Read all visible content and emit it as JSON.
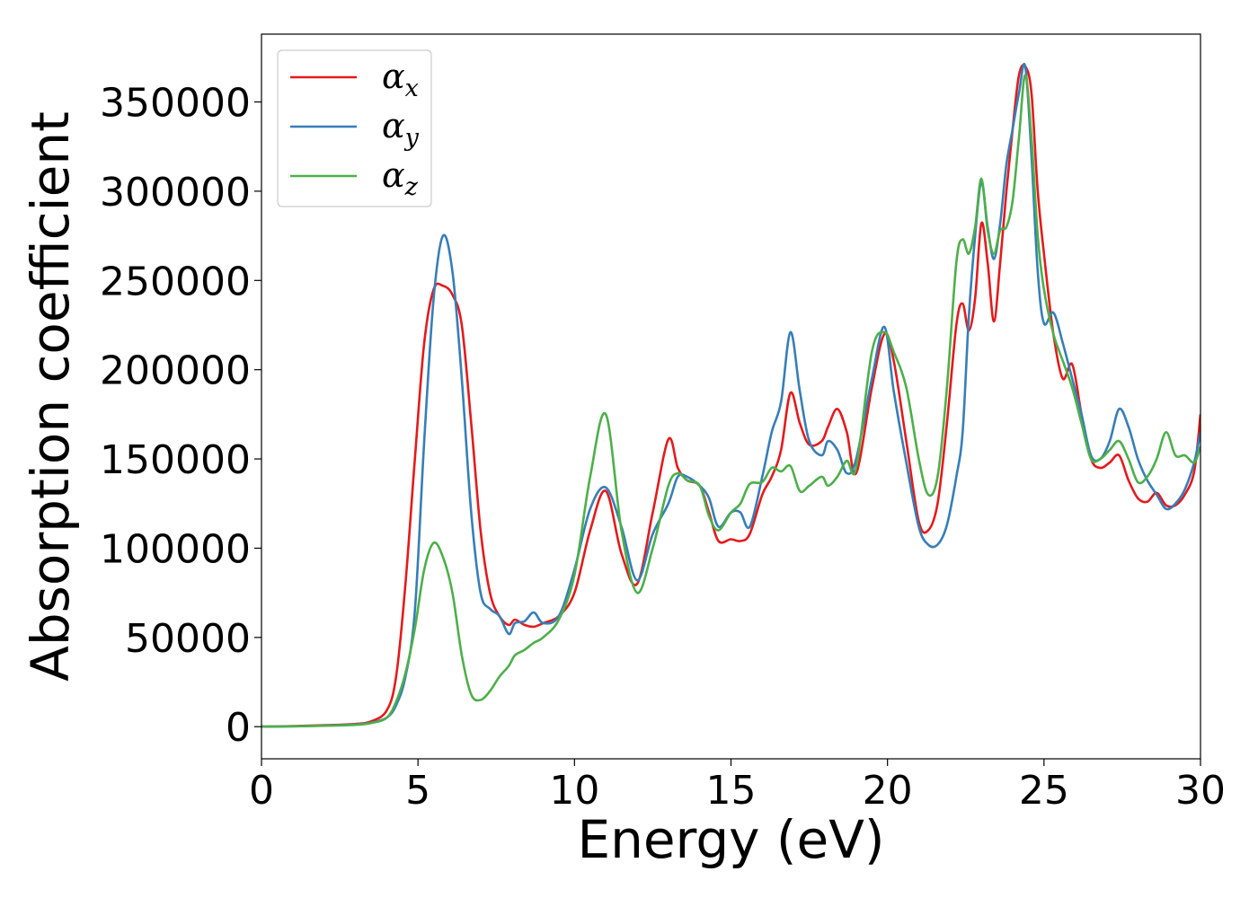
{
  "chart_data": {
    "type": "line",
    "title": "",
    "xlabel": "Energy (eV)",
    "ylabel": "Absorption coefficient",
    "xlim": [
      0,
      30
    ],
    "ylim": [
      -18000,
      388000
    ],
    "xticks": [
      0,
      5,
      10,
      15,
      20,
      25,
      30
    ],
    "yticks": [
      0,
      50000,
      100000,
      150000,
      200000,
      250000,
      300000,
      350000
    ],
    "grid": false,
    "legend_position": "top-left",
    "series": [
      {
        "name": "α",
        "subscript": "x",
        "color": "#e41a1c",
        "x": [
          0,
          1,
          2,
          3,
          3.5,
          4,
          4.3,
          4.6,
          4.9,
          5.2,
          5.5,
          5.8,
          6.1,
          6.4,
          6.7,
          7.0,
          7.3,
          7.6,
          7.9,
          8.1,
          8.4,
          8.7,
          9.0,
          9.5,
          10.0,
          10.5,
          11.0,
          11.5,
          12.0,
          12.5,
          13.0,
          13.3,
          13.6,
          14.0,
          14.3,
          14.6,
          15.0,
          15.3,
          15.6,
          16.0,
          16.3,
          16.6,
          16.9,
          17.2,
          17.5,
          17.9,
          18.1,
          18.4,
          18.7,
          19.0,
          19.5,
          19.9,
          20.2,
          20.6,
          21.0,
          21.3,
          21.6,
          21.9,
          22.2,
          22.4,
          22.6,
          22.8,
          23.0,
          23.2,
          23.4,
          23.6,
          23.8,
          24.0,
          24.2,
          24.4,
          24.6,
          24.8,
          25.0,
          25.3,
          25.6,
          25.9,
          26.2,
          26.5,
          26.8,
          27.1,
          27.4,
          27.7,
          28.0,
          28.3,
          28.6,
          28.9,
          29.2,
          29.5,
          29.8,
          30.0
        ],
        "y": [
          0,
          300,
          800,
          1500,
          3000,
          9000,
          28000,
          80000,
          150000,
          215000,
          245000,
          247000,
          242000,
          225000,
          170000,
          110000,
          75000,
          62000,
          57000,
          60000,
          57000,
          56000,
          58000,
          62000,
          75000,
          110000,
          132000,
          97000,
          80000,
          120000,
          161000,
          145000,
          138000,
          135000,
          120000,
          104000,
          105000,
          104000,
          108000,
          130000,
          140000,
          155000,
          187000,
          170000,
          158000,
          160000,
          168000,
          178000,
          165000,
          142000,
          190000,
          220000,
          205000,
          160000,
          115000,
          110000,
          125000,
          170000,
          225000,
          237000,
          222000,
          240000,
          282000,
          260000,
          227000,
          260000,
          300000,
          335000,
          365000,
          370000,
          355000,
          300000,
          265000,
          220000,
          195000,
          203000,
          175000,
          150000,
          145000,
          148000,
          152000,
          138000,
          128000,
          126000,
          131000,
          124000,
          124000,
          130000,
          143000,
          175000
        ]
      },
      {
        "name": "α",
        "subscript": "y",
        "color": "#377eb8",
        "x": [
          0,
          1,
          2,
          3,
          3.5,
          4,
          4.3,
          4.6,
          4.9,
          5.2,
          5.5,
          5.8,
          6.1,
          6.4,
          6.7,
          7.0,
          7.3,
          7.6,
          7.9,
          8.1,
          8.4,
          8.7,
          9.0,
          9.5,
          10.0,
          10.5,
          11.0,
          11.5,
          12.0,
          12.5,
          13.0,
          13.3,
          13.6,
          14.0,
          14.3,
          14.6,
          15.0,
          15.3,
          15.6,
          16.0,
          16.3,
          16.6,
          16.9,
          17.2,
          17.5,
          17.9,
          18.1,
          18.4,
          18.7,
          19.0,
          19.5,
          19.9,
          20.2,
          20.6,
          21.0,
          21.3,
          21.6,
          21.9,
          22.2,
          22.4,
          22.6,
          22.8,
          23.0,
          23.2,
          23.4,
          23.6,
          23.8,
          24.0,
          24.2,
          24.4,
          24.6,
          24.8,
          25.0,
          25.3,
          25.6,
          25.9,
          26.2,
          26.5,
          26.8,
          27.1,
          27.4,
          27.7,
          28.0,
          28.3,
          28.6,
          28.9,
          29.2,
          29.5,
          29.8,
          30.0
        ],
        "y": [
          0,
          200,
          600,
          1200,
          2200,
          5000,
          12000,
          28000,
          65000,
          160000,
          240000,
          275000,
          255000,
          195000,
          120000,
          75000,
          66000,
          62000,
          52000,
          58000,
          59000,
          64000,
          58000,
          62000,
          88000,
          122000,
          134000,
          112000,
          82000,
          108000,
          125000,
          140000,
          140000,
          135000,
          128000,
          112000,
          120000,
          120000,
          112000,
          140000,
          165000,
          182000,
          221000,
          188000,
          160000,
          152000,
          160000,
          155000,
          142000,
          150000,
          195000,
          224000,
          188000,
          148000,
          112000,
          102000,
          102000,
          113000,
          140000,
          165000,
          230000,
          275000,
          305000,
          280000,
          262000,
          282000,
          315000,
          335000,
          355000,
          370000,
          320000,
          255000,
          226000,
          232000,
          215000,
          195000,
          175000,
          152000,
          150000,
          160000,
          178000,
          168000,
          150000,
          138000,
          130000,
          122000,
          125000,
          133000,
          148000,
          165000
        ]
      },
      {
        "name": "α",
        "subscript": "z",
        "color": "#4daf4a",
        "x": [
          0,
          1,
          2,
          3,
          3.5,
          4,
          4.3,
          4.6,
          4.9,
          5.2,
          5.5,
          5.8,
          6.1,
          6.4,
          6.7,
          7.0,
          7.3,
          7.6,
          7.9,
          8.1,
          8.4,
          8.7,
          9.0,
          9.5,
          10.0,
          10.5,
          11.0,
          11.5,
          12.0,
          12.5,
          13.0,
          13.3,
          13.6,
          14.0,
          14.3,
          14.6,
          15.0,
          15.3,
          15.6,
          16.0,
          16.3,
          16.6,
          16.9,
          17.2,
          17.5,
          17.9,
          18.1,
          18.4,
          18.7,
          19.0,
          19.5,
          19.9,
          20.2,
          20.6,
          21.0,
          21.3,
          21.6,
          21.9,
          22.2,
          22.4,
          22.6,
          22.8,
          23.0,
          23.2,
          23.4,
          23.6,
          23.8,
          24.0,
          24.2,
          24.4,
          24.6,
          24.8,
          25.0,
          25.3,
          25.6,
          25.9,
          26.2,
          26.5,
          26.8,
          27.1,
          27.4,
          27.7,
          28.0,
          28.3,
          28.6,
          28.9,
          29.2,
          29.5,
          29.8,
          30.0
        ],
        "y": [
          0,
          200,
          500,
          1000,
          2000,
          5000,
          14000,
          30000,
          55000,
          88000,
          103000,
          95000,
          75000,
          40000,
          18000,
          15000,
          20000,
          28000,
          34000,
          40000,
          43000,
          47000,
          50000,
          60000,
          85000,
          140000,
          175000,
          110000,
          75000,
          100000,
          135000,
          142000,
          138000,
          135000,
          118000,
          110000,
          120000,
          125000,
          136000,
          137000,
          145000,
          143000,
          146000,
          132000,
          135000,
          140000,
          135000,
          140000,
          149000,
          145000,
          210000,
          221000,
          210000,
          190000,
          150000,
          130000,
          140000,
          190000,
          260000,
          273000,
          265000,
          280000,
          307000,
          278000,
          265000,
          278000,
          280000,
          295000,
          330000,
          365000,
          330000,
          275000,
          245000,
          220000,
          205000,
          190000,
          170000,
          150000,
          150000,
          155000,
          160000,
          150000,
          137000,
          140000,
          150000,
          165000,
          152000,
          152000,
          148000,
          157000
        ]
      }
    ]
  }
}
